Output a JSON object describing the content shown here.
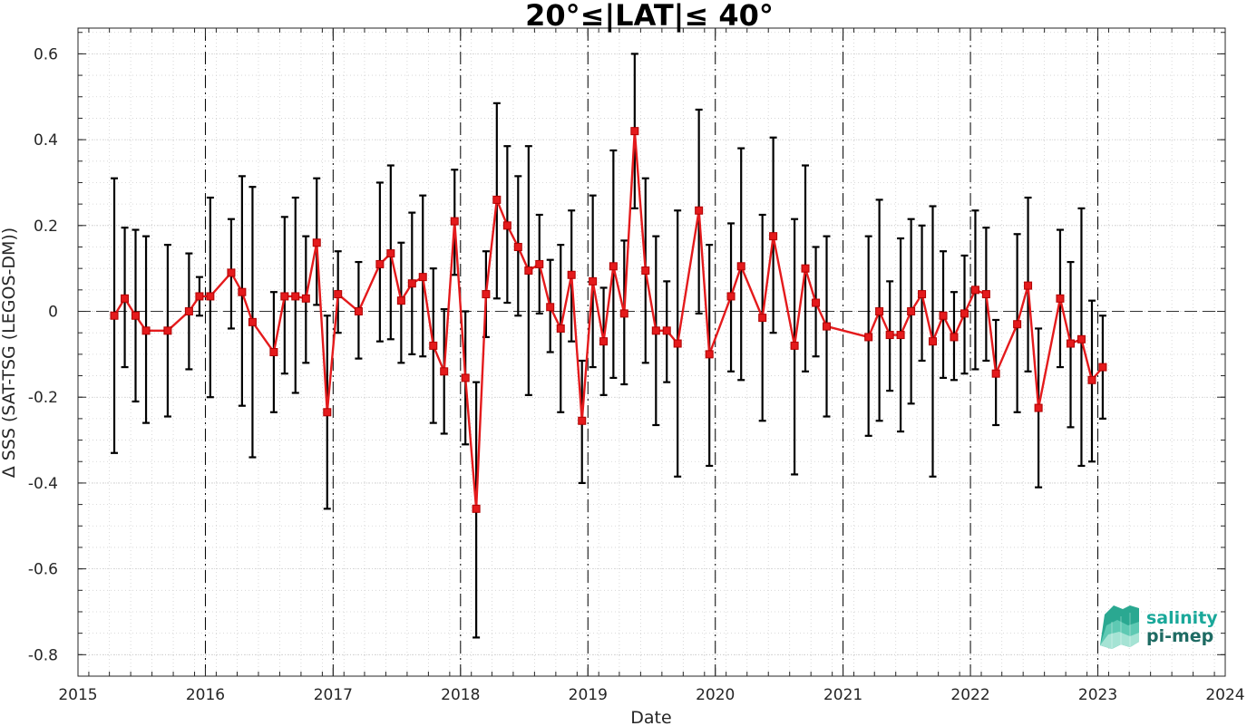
{
  "chart_data": {
    "type": "line",
    "title": "20°≤|LAT|≤ 40°",
    "xlabel": "Date",
    "ylabel": "Δ SSS (SAT-TSG (LEGOS-DM))",
    "xlim": [
      "2015-01-01",
      "2024-01-01"
    ],
    "ylim": [
      -0.85,
      0.66
    ],
    "x_ticks": [
      "2015",
      "2016",
      "2017",
      "2018",
      "2019",
      "2020",
      "2021",
      "2022",
      "2023",
      "2024"
    ],
    "y_ticks": [
      0.6,
      0.4,
      0.2,
      0,
      -0.2,
      -0.4,
      -0.6,
      -0.8
    ],
    "y_tick_labels": [
      "0.6",
      "0.4",
      "0.2",
      "0",
      "-0.2",
      "-0.4",
      "-0.6",
      "-0.8"
    ],
    "grid": true,
    "reference_line": 0,
    "year_markers": [
      "2016-01-01",
      "2017-01-01",
      "2018-01-01",
      "2019-01-01",
      "2020-01-01",
      "2021-01-01",
      "2022-01-01",
      "2023-01-01"
    ],
    "series": [
      {
        "color": "#e41a1c",
        "marker": "square",
        "error_bar_color": "#000000",
        "points": [
          {
            "x": "2015-04-15",
            "y": -0.01,
            "lo": -0.33,
            "hi": 0.31
          },
          {
            "x": "2015-05-15",
            "y": 0.03,
            "lo": -0.13,
            "hi": 0.195
          },
          {
            "x": "2015-06-15",
            "y": -0.01,
            "lo": -0.21,
            "hi": 0.19
          },
          {
            "x": "2015-07-15",
            "y": -0.045,
            "lo": -0.26,
            "hi": 0.175
          },
          {
            "x": "2015-09-15",
            "y": -0.045,
            "lo": -0.245,
            "hi": 0.155
          },
          {
            "x": "2015-11-15",
            "y": 0.0,
            "lo": -0.135,
            "hi": 0.135
          },
          {
            "x": "2015-12-15",
            "y": 0.035,
            "lo": -0.01,
            "hi": 0.08
          },
          {
            "x": "2016-01-15",
            "y": 0.035,
            "lo": -0.2,
            "hi": 0.265
          },
          {
            "x": "2016-03-15",
            "y": 0.09,
            "lo": -0.04,
            "hi": 0.215
          },
          {
            "x": "2016-04-15",
            "y": 0.045,
            "lo": -0.22,
            "hi": 0.315
          },
          {
            "x": "2016-05-15",
            "y": -0.025,
            "lo": -0.34,
            "hi": 0.29
          },
          {
            "x": "2016-07-15",
            "y": -0.095,
            "lo": -0.235,
            "hi": 0.045
          },
          {
            "x": "2016-08-15",
            "y": 0.035,
            "lo": -0.145,
            "hi": 0.22
          },
          {
            "x": "2016-09-15",
            "y": 0.035,
            "lo": -0.19,
            "hi": 0.265
          },
          {
            "x": "2016-10-15",
            "y": 0.03,
            "lo": -0.12,
            "hi": 0.175
          },
          {
            "x": "2016-11-15",
            "y": 0.16,
            "lo": 0.015,
            "hi": 0.31
          },
          {
            "x": "2016-12-15",
            "y": -0.235,
            "lo": -0.46,
            "hi": -0.01
          },
          {
            "x": "2017-01-15",
            "y": 0.04,
            "lo": -0.05,
            "hi": 0.14
          },
          {
            "x": "2017-03-15",
            "y": 0.0,
            "lo": -0.11,
            "hi": 0.115
          },
          {
            "x": "2017-05-15",
            "y": 0.11,
            "lo": -0.07,
            "hi": 0.3
          },
          {
            "x": "2017-06-15",
            "y": 0.135,
            "lo": -0.065,
            "hi": 0.34
          },
          {
            "x": "2017-07-15",
            "y": 0.025,
            "lo": -0.12,
            "hi": 0.16
          },
          {
            "x": "2017-08-15",
            "y": 0.065,
            "lo": -0.1,
            "hi": 0.23
          },
          {
            "x": "2017-09-15",
            "y": 0.08,
            "lo": -0.105,
            "hi": 0.27
          },
          {
            "x": "2017-10-15",
            "y": -0.08,
            "lo": -0.26,
            "hi": 0.1
          },
          {
            "x": "2017-11-15",
            "y": -0.14,
            "lo": -0.285,
            "hi": 0.005
          },
          {
            "x": "2017-12-15",
            "y": 0.21,
            "lo": 0.085,
            "hi": 0.33
          },
          {
            "x": "2018-01-15",
            "y": -0.155,
            "lo": -0.31,
            "hi": 0.0
          },
          {
            "x": "2018-02-15",
            "y": -0.46,
            "lo": -0.76,
            "hi": -0.165
          },
          {
            "x": "2018-03-15",
            "y": 0.04,
            "lo": -0.06,
            "hi": 0.14
          },
          {
            "x": "2018-04-15",
            "y": 0.26,
            "lo": 0.03,
            "hi": 0.485
          },
          {
            "x": "2018-05-15",
            "y": 0.2,
            "lo": 0.02,
            "hi": 0.385
          },
          {
            "x": "2018-06-15",
            "y": 0.15,
            "lo": -0.01,
            "hi": 0.315
          },
          {
            "x": "2018-07-15",
            "y": 0.095,
            "lo": -0.195,
            "hi": 0.385
          },
          {
            "x": "2018-08-15",
            "y": 0.11,
            "lo": -0.005,
            "hi": 0.225
          },
          {
            "x": "2018-09-15",
            "y": 0.01,
            "lo": -0.095,
            "hi": 0.12
          },
          {
            "x": "2018-10-15",
            "y": -0.04,
            "lo": -0.235,
            "hi": 0.155
          },
          {
            "x": "2018-11-15",
            "y": 0.085,
            "lo": -0.07,
            "hi": 0.235
          },
          {
            "x": "2018-12-15",
            "y": -0.255,
            "lo": -0.4,
            "hi": -0.115
          },
          {
            "x": "2019-01-15",
            "y": 0.07,
            "lo": -0.13,
            "hi": 0.27
          },
          {
            "x": "2019-02-15",
            "y": -0.07,
            "lo": -0.195,
            "hi": 0.055
          },
          {
            "x": "2019-03-15",
            "y": 0.105,
            "lo": -0.155,
            "hi": 0.375
          },
          {
            "x": "2019-04-15",
            "y": -0.005,
            "lo": -0.17,
            "hi": 0.165
          },
          {
            "x": "2019-05-15",
            "y": 0.42,
            "lo": 0.24,
            "hi": 0.6
          },
          {
            "x": "2019-06-15",
            "y": 0.095,
            "lo": -0.12,
            "hi": 0.31
          },
          {
            "x": "2019-07-15",
            "y": -0.045,
            "lo": -0.265,
            "hi": 0.175
          },
          {
            "x": "2019-08-15",
            "y": -0.045,
            "lo": -0.165,
            "hi": 0.07
          },
          {
            "x": "2019-09-15",
            "y": -0.075,
            "lo": -0.385,
            "hi": 0.235
          },
          {
            "x": "2019-11-15",
            "y": 0.235,
            "lo": -0.005,
            "hi": 0.47
          },
          {
            "x": "2019-12-15",
            "y": -0.1,
            "lo": -0.36,
            "hi": 0.155
          },
          {
            "x": "2020-02-15",
            "y": 0.035,
            "lo": -0.14,
            "hi": 0.205
          },
          {
            "x": "2020-03-15",
            "y": 0.105,
            "lo": -0.16,
            "hi": 0.38
          },
          {
            "x": "2020-05-15",
            "y": -0.015,
            "lo": -0.255,
            "hi": 0.225
          },
          {
            "x": "2020-06-15",
            "y": 0.175,
            "lo": -0.05,
            "hi": 0.405
          },
          {
            "x": "2020-08-15",
            "y": -0.08,
            "lo": -0.38,
            "hi": 0.215
          },
          {
            "x": "2020-09-15",
            "y": 0.1,
            "lo": -0.14,
            "hi": 0.34
          },
          {
            "x": "2020-10-15",
            "y": 0.02,
            "lo": -0.105,
            "hi": 0.15
          },
          {
            "x": "2020-11-15",
            "y": -0.035,
            "lo": -0.245,
            "hi": 0.175
          },
          {
            "x": "2021-03-15",
            "y": -0.06,
            "lo": -0.29,
            "hi": 0.175
          },
          {
            "x": "2021-04-15",
            "y": 0.0,
            "lo": -0.255,
            "hi": 0.26
          },
          {
            "x": "2021-05-15",
            "y": -0.055,
            "lo": -0.185,
            "hi": 0.07
          },
          {
            "x": "2021-06-15",
            "y": -0.055,
            "lo": -0.28,
            "hi": 0.17
          },
          {
            "x": "2021-07-15",
            "y": 0.0,
            "lo": -0.215,
            "hi": 0.215
          },
          {
            "x": "2021-08-15",
            "y": 0.04,
            "lo": -0.115,
            "hi": 0.2
          },
          {
            "x": "2021-09-15",
            "y": -0.07,
            "lo": -0.385,
            "hi": 0.245
          },
          {
            "x": "2021-10-15",
            "y": -0.01,
            "lo": -0.155,
            "hi": 0.14
          },
          {
            "x": "2021-11-15",
            "y": -0.06,
            "lo": -0.16,
            "hi": 0.045
          },
          {
            "x": "2021-12-15",
            "y": -0.005,
            "lo": -0.145,
            "hi": 0.13
          },
          {
            "x": "2022-01-15",
            "y": 0.05,
            "lo": -0.135,
            "hi": 0.235
          },
          {
            "x": "2022-02-15",
            "y": 0.04,
            "lo": -0.115,
            "hi": 0.195
          },
          {
            "x": "2022-03-15",
            "y": -0.145,
            "lo": -0.265,
            "hi": -0.02
          },
          {
            "x": "2022-05-15",
            "y": -0.03,
            "lo": -0.235,
            "hi": 0.18
          },
          {
            "x": "2022-06-15",
            "y": 0.06,
            "lo": -0.14,
            "hi": 0.265
          },
          {
            "x": "2022-07-15",
            "y": -0.225,
            "lo": -0.41,
            "hi": -0.04
          },
          {
            "x": "2022-09-15",
            "y": 0.03,
            "lo": -0.13,
            "hi": 0.19
          },
          {
            "x": "2022-10-15",
            "y": -0.075,
            "lo": -0.27,
            "hi": 0.115
          },
          {
            "x": "2022-11-15",
            "y": -0.065,
            "lo": -0.36,
            "hi": 0.24
          },
          {
            "x": "2022-12-15",
            "y": -0.16,
            "lo": -0.35,
            "hi": 0.025
          },
          {
            "x": "2023-01-15",
            "y": -0.13,
            "lo": -0.25,
            "hi": -0.01
          }
        ]
      }
    ]
  },
  "logo": {
    "line1": "salinity",
    "line2": "pi-mep",
    "color1": "#1aa89a",
    "color2": "#1e6b63"
  }
}
